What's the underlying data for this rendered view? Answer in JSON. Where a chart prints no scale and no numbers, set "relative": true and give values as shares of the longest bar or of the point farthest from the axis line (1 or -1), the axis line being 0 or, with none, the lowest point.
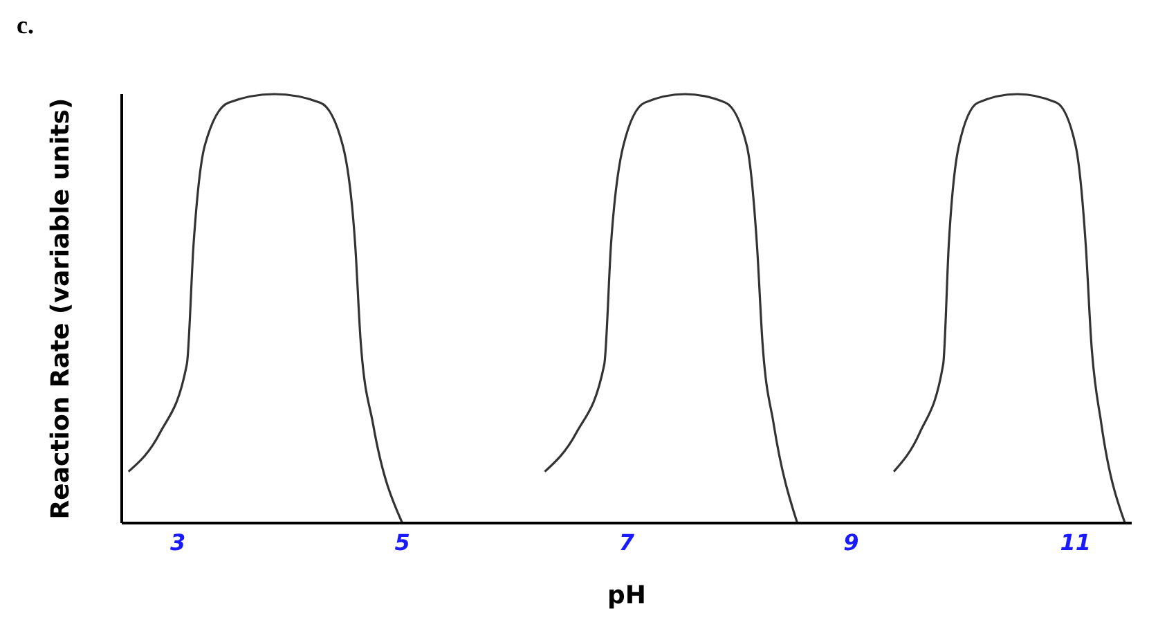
{
  "chart_data": {
    "type": "line",
    "title": "c.",
    "xlabel": "pH",
    "ylabel": "Reaction Rate (variable units)",
    "relative": true,
    "xlim": [
      2.5,
      11.5
    ],
    "xticks": [
      3,
      5,
      7,
      9,
      11
    ],
    "grid": false,
    "legend": false,
    "marker": "none",
    "line_style": "solid",
    "series": [
      {
        "color": "#333333",
        "x": [
          2.56,
          2.84,
          3.08,
          3.14,
          3.24,
          3.45,
          3.86,
          4.27,
          4.47,
          4.58,
          4.63,
          4.74,
          5.0
        ],
        "values": [
          0.12,
          0.21,
          0.37,
          0.65,
          0.88,
          0.98,
          1,
          0.98,
          0.88,
          0.65,
          0.42,
          0.23,
          0
        ]
      },
      {
        "color": "#333333",
        "x": [
          6.27,
          6.55,
          6.8,
          6.86,
          6.97,
          7.16,
          7.52,
          7.88,
          8.07,
          8.16,
          8.21,
          8.31,
          8.52
        ],
        "values": [
          0.12,
          0.21,
          0.37,
          0.65,
          0.88,
          0.98,
          1,
          0.98,
          0.88,
          0.65,
          0.42,
          0.23,
          0
        ]
      },
      {
        "color": "#333333",
        "x": [
          9.38,
          9.61,
          9.82,
          9.87,
          9.96,
          10.13,
          10.48,
          10.83,
          11.0,
          11.09,
          11.14,
          11.23,
          11.44
        ],
        "values": [
          0.12,
          0.21,
          0.37,
          0.65,
          0.88,
          0.98,
          1,
          0.98,
          0.88,
          0.65,
          0.42,
          0.23,
          0
        ]
      }
    ]
  }
}
